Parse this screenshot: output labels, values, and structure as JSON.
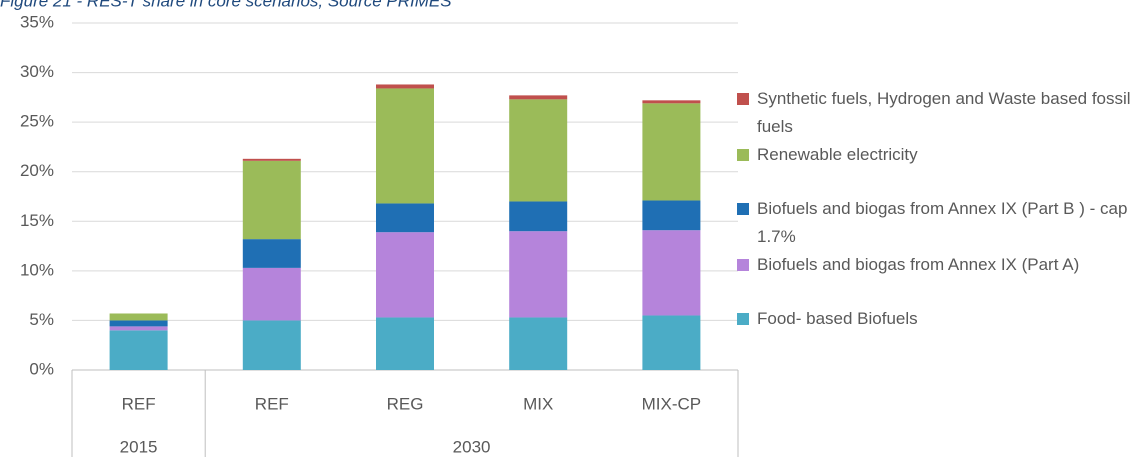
{
  "chart_data": {
    "type": "stacked_bar",
    "title": "Figure 21 - RES-T share in core scenarios, Source PRIMES",
    "categories": [
      "REF",
      "REF",
      "REG",
      "MIX",
      "MIX-CP"
    ],
    "category_groups": [
      {
        "name": "2015",
        "count": 1
      },
      {
        "name": "2030",
        "count": 4
      }
    ],
    "series": [
      {
        "name": "Food- based Biofuels",
        "color": "#4bacc6",
        "values": [
          4.0,
          5.0,
          5.3,
          5.3,
          5.5
        ]
      },
      {
        "name": "Biofuels and biogas from Annex IX (Part A)",
        "color": "#b584db",
        "values": [
          0.4,
          5.3,
          8.6,
          8.7,
          8.6
        ]
      },
      {
        "name": "Biofuels and biogas from Annex IX (Part B ) - cap 1.7%",
        "color": "#1f6fb4",
        "values": [
          0.6,
          2.9,
          2.9,
          3.0,
          3.0
        ]
      },
      {
        "name": "Renewable electricity",
        "color": "#9bbb59",
        "values": [
          0.7,
          7.9,
          11.6,
          10.3,
          9.8
        ]
      },
      {
        "name": "Synthetic fuels, Hydrogen and Waste based fossil fuels",
        "color": "#c0504d",
        "values": [
          0.0,
          0.2,
          0.4,
          0.4,
          0.3
        ]
      }
    ],
    "ylim": [
      0,
      35
    ],
    "yticks": [
      {
        "value": 0,
        "label": "0%"
      },
      {
        "value": 5,
        "label": "5%"
      },
      {
        "value": 10,
        "label": "10%"
      },
      {
        "value": 15,
        "label": "15%"
      },
      {
        "value": 20,
        "label": "20%"
      },
      {
        "value": 25,
        "label": "25%"
      },
      {
        "value": 30,
        "label": "30%"
      },
      {
        "value": 35,
        "label": "35%"
      }
    ],
    "grid": true,
    "legend": "right"
  }
}
